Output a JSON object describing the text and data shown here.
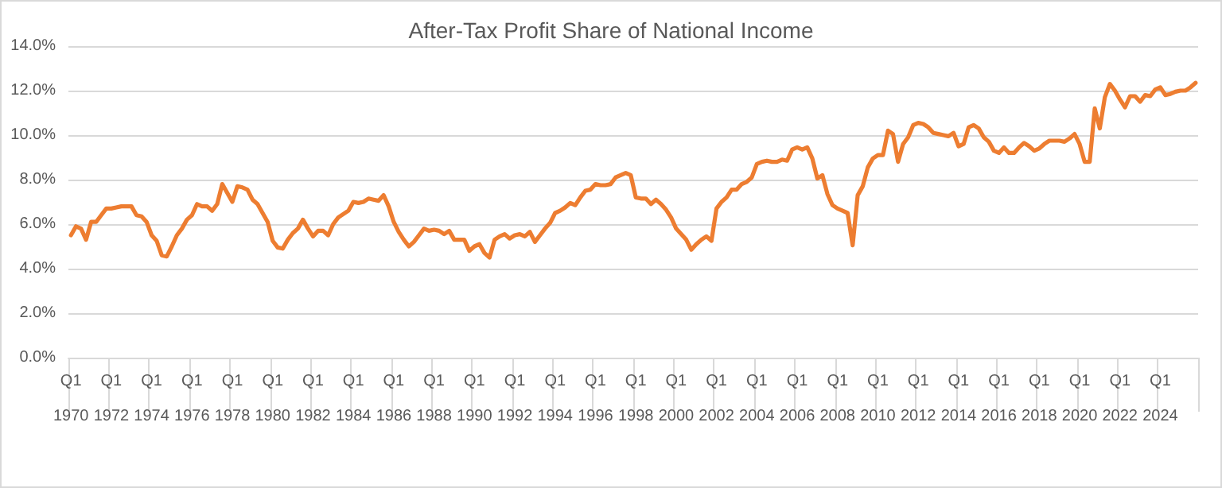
{
  "chart_data": {
    "type": "line",
    "title": "After-Tax Profit Share of National Income",
    "categories": [
      "Q1\n1970",
      null,
      null,
      null,
      null,
      null,
      null,
      null,
      "Q1\n1972",
      null,
      null,
      null,
      null,
      null,
      null,
      null,
      "Q1\n1974",
      null,
      null,
      null,
      null,
      null,
      null,
      null,
      "Q1\n1976",
      null,
      null,
      null,
      null,
      null,
      null,
      null,
      "Q1\n1978",
      null,
      null,
      null,
      null,
      null,
      null,
      null,
      "Q1\n1980",
      null,
      null,
      null,
      null,
      null,
      null,
      null,
      "Q1\n1982",
      null,
      null,
      null,
      null,
      null,
      null,
      null,
      "Q1\n1984",
      null,
      null,
      null,
      null,
      null,
      null,
      null,
      "Q1\n1986",
      null,
      null,
      null,
      null,
      null,
      null,
      null,
      "Q1\n1988",
      null,
      null,
      null,
      null,
      null,
      null,
      null,
      "Q1\n1990",
      null,
      null,
      null,
      null,
      null,
      null,
      null,
      "Q1\n1992",
      null,
      null,
      null,
      null,
      null,
      null,
      null,
      "Q1\n1994",
      null,
      null,
      null,
      null,
      null,
      null,
      null,
      "Q1\n1996",
      null,
      null,
      null,
      null,
      null,
      null,
      null,
      "Q1\n1998",
      null,
      null,
      null,
      null,
      null,
      null,
      null,
      "Q1\n2000",
      null,
      null,
      null,
      null,
      null,
      null,
      null,
      "Q1\n2002",
      null,
      null,
      null,
      null,
      null,
      null,
      null,
      "Q1\n2004",
      null,
      null,
      null,
      null,
      null,
      null,
      null,
      "Q1\n2006",
      null,
      null,
      null,
      null,
      null,
      null,
      null,
      "Q1\n2008",
      null,
      null,
      null,
      null,
      null,
      null,
      null,
      "Q1\n2010",
      null,
      null,
      null,
      null,
      null,
      null,
      null,
      "Q1\n2012",
      null,
      null,
      null,
      null,
      null,
      null,
      null,
      "Q1\n2014",
      null,
      null,
      null,
      null,
      null,
      null,
      null,
      "Q1\n2016",
      null,
      null,
      null,
      null,
      null,
      null,
      null,
      "Q1\n2018",
      null,
      null,
      null,
      null,
      null,
      null,
      null,
      "Q1\n2020",
      null,
      null,
      null,
      null,
      null,
      null,
      null,
      "Q1\n2022",
      null,
      null,
      null,
      null,
      null,
      null,
      null,
      "Q1\n2024",
      null,
      null,
      null,
      null,
      null,
      null,
      null
    ],
    "series": [
      {
        "color": "#ed7d31",
        "values": [
          5.5,
          5.9,
          5.8,
          5.3,
          6.1,
          6.1,
          6.4,
          6.7,
          6.7,
          6.75,
          6.8,
          6.8,
          6.8,
          6.4,
          6.35,
          6.1,
          5.5,
          5.25,
          4.6,
          4.55,
          5.0,
          5.5,
          5.8,
          6.2,
          6.4,
          6.9,
          6.8,
          6.8,
          6.6,
          6.9,
          7.8,
          7.4,
          7.0,
          7.7,
          7.65,
          7.55,
          7.1,
          6.9,
          6.5,
          6.1,
          5.25,
          4.95,
          4.9,
          5.3,
          5.6,
          5.8,
          6.2,
          5.8,
          5.45,
          5.7,
          5.7,
          5.5,
          6.0,
          6.3,
          6.45,
          6.6,
          7.0,
          6.95,
          7.0,
          7.15,
          7.1,
          7.05,
          7.3,
          6.8,
          6.1,
          5.65,
          5.3,
          5.0,
          5.2,
          5.5,
          5.8,
          5.7,
          5.75,
          5.7,
          5.55,
          5.7,
          5.3,
          5.3,
          5.3,
          4.8,
          5.0,
          5.1,
          4.7,
          4.5,
          5.3,
          5.45,
          5.55,
          5.35,
          5.5,
          5.55,
          5.45,
          5.65,
          5.2,
          5.5,
          5.8,
          6.05,
          6.5,
          6.6,
          6.75,
          6.95,
          6.85,
          7.2,
          7.5,
          7.55,
          7.8,
          7.75,
          7.75,
          7.8,
          8.1,
          8.2,
          8.3,
          8.2,
          7.2,
          7.15,
          7.15,
          6.9,
          7.1,
          6.9,
          6.65,
          6.3,
          5.8,
          5.55,
          5.3,
          4.85,
          5.1,
          5.3,
          5.45,
          5.25,
          6.7,
          7.0,
          7.2,
          7.55,
          7.55,
          7.8,
          7.9,
          8.1,
          8.7,
          8.8,
          8.85,
          8.8,
          8.8,
          8.9,
          8.85,
          9.35,
          9.45,
          9.35,
          9.45,
          8.95,
          8.05,
          8.2,
          7.35,
          6.85,
          6.7,
          6.6,
          6.5,
          5.05,
          7.3,
          7.7,
          8.55,
          8.95,
          9.1,
          9.1,
          10.2,
          10.05,
          8.8,
          9.6,
          9.9,
          10.45,
          10.55,
          10.5,
          10.35,
          10.1,
          10.05,
          10.0,
          9.95,
          10.1,
          9.5,
          9.6,
          10.35,
          10.45,
          10.3,
          9.9,
          9.7,
          9.3,
          9.2,
          9.45,
          9.2,
          9.2,
          9.45,
          9.65,
          9.5,
          9.3,
          9.4,
          9.6,
          9.75,
          9.75,
          9.75,
          9.7,
          9.85,
          10.05,
          9.6,
          8.8,
          8.8,
          11.2,
          10.3,
          11.7,
          12.3,
          12.0,
          11.6,
          11.25,
          11.75,
          11.75,
          11.5,
          11.8,
          11.75,
          12.05,
          12.15,
          11.8,
          11.85,
          11.95,
          12.0,
          12.0,
          12.15,
          12.35
        ]
      }
    ],
    "ylim": [
      0,
      14
    ],
    "yticks": [
      {
        "value": 0,
        "label": "0.0%"
      },
      {
        "value": 2,
        "label": "2.0%"
      },
      {
        "value": 4,
        "label": "4.0%"
      },
      {
        "value": 6,
        "label": "6.0%"
      },
      {
        "value": 8,
        "label": "8.0%"
      },
      {
        "value": 10,
        "label": "10.0%"
      },
      {
        "value": 12,
        "label": "12.0%"
      },
      {
        "value": 14,
        "label": "14.0%"
      }
    ],
    "grid": "y",
    "marker": "none",
    "line_style": "solid"
  }
}
